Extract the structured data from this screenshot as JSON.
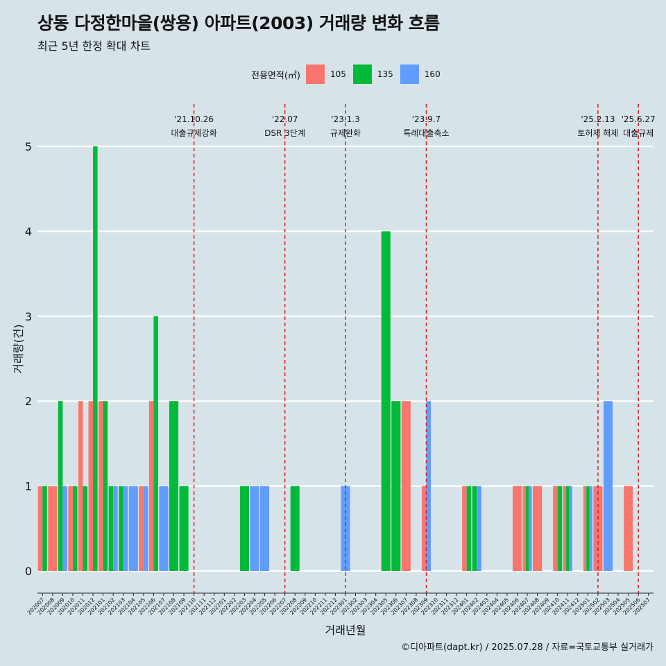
{
  "title": "상동 다정한마을(쌍용) 아파트(2003) 거래량 변화 흐름",
  "subtitle": "최근 5년 한정 확대 차트",
  "caption": "©디아파트(dapt.kr) / 2025.07.28 / 자료=국토교통부 실거래가",
  "legend": {
    "title": "전용면적(㎡)",
    "items": [
      {
        "label": "105",
        "color": "#f8766d"
      },
      {
        "label": "135",
        "color": "#00ba38"
      },
      {
        "label": "160",
        "color": "#619cff"
      }
    ]
  },
  "chart_data": {
    "type": "bar",
    "xlabel": "거래년월",
    "ylabel": "거래량(건)",
    "ylim": [
      0,
      5
    ],
    "yticks": [
      0,
      1,
      2,
      3,
      4,
      5
    ],
    "grid": true,
    "legend_position": "top",
    "categories": [
      "202007",
      "202008",
      "202009",
      "202010",
      "202011",
      "202012",
      "202101",
      "202102",
      "202103",
      "202104",
      "202105",
      "202106",
      "202107",
      "202108",
      "202109",
      "202110",
      "202111",
      "202112",
      "202201",
      "202202",
      "202203",
      "202204",
      "202205",
      "202206",
      "202207",
      "202208",
      "202209",
      "202210",
      "202211",
      "202212",
      "202301",
      "202302",
      "202303",
      "202304",
      "202305",
      "202306",
      "202307",
      "202308",
      "202309",
      "202310",
      "202311",
      "202312",
      "202401",
      "202402",
      "202403",
      "202404",
      "202405",
      "202406",
      "202407",
      "202408",
      "202409",
      "202410",
      "202411",
      "202412",
      "202501",
      "202502",
      "202503",
      "202504",
      "202505",
      "202506",
      "202507"
    ],
    "series": [
      {
        "name": "105",
        "color": "#f8766d",
        "values": [
          1,
          1,
          0,
          1,
          2,
          2,
          2,
          0,
          0,
          0,
          1,
          2,
          0,
          0,
          0,
          0,
          0,
          0,
          0,
          0,
          0,
          0,
          0,
          0,
          0,
          0,
          0,
          0,
          0,
          0,
          0,
          0,
          0,
          0,
          0,
          0,
          2,
          0,
          1,
          0,
          0,
          0,
          1,
          0,
          0,
          0,
          0,
          1,
          1,
          1,
          0,
          1,
          1,
          0,
          1,
          1,
          0,
          0,
          1,
          0,
          0
        ]
      },
      {
        "name": "135",
        "color": "#00ba38",
        "values": [
          1,
          0,
          2,
          1,
          1,
          5,
          2,
          1,
          1,
          0,
          0,
          3,
          0,
          2,
          1,
          0,
          0,
          0,
          0,
          0,
          1,
          0,
          0,
          0,
          0,
          1,
          0,
          0,
          0,
          0,
          0,
          0,
          0,
          0,
          4,
          2,
          0,
          0,
          0,
          0,
          0,
          0,
          1,
          1,
          0,
          0,
          0,
          0,
          1,
          0,
          0,
          1,
          1,
          0,
          1,
          0,
          0,
          0,
          0,
          0,
          0
        ]
      },
      {
        "name": "160",
        "color": "#619cff",
        "values": [
          0,
          0,
          1,
          0,
          0,
          0,
          0,
          1,
          1,
          1,
          1,
          0,
          1,
          0,
          0,
          0,
          0,
          0,
          0,
          0,
          0,
          1,
          1,
          0,
          0,
          0,
          0,
          0,
          0,
          0,
          1,
          0,
          0,
          0,
          0,
          0,
          0,
          0,
          2,
          0,
          0,
          0,
          0,
          1,
          0,
          0,
          0,
          0,
          1,
          0,
          0,
          0,
          1,
          0,
          1,
          0,
          2,
          0,
          0,
          0,
          0
        ]
      }
    ],
    "events": [
      {
        "position": "202110",
        "date": "'21.10.26",
        "label": "대출규제강화"
      },
      {
        "position": "202207",
        "date": "'22.07",
        "label": "DSR 3단계"
      },
      {
        "position": "202301",
        "date": "'23.1.3",
        "label": "규제완화"
      },
      {
        "position": "202309",
        "date": "'23.9.7",
        "label": "특례대출축소"
      },
      {
        "position": "202502",
        "date": "'25.2.13",
        "label": "토허제 해제"
      },
      {
        "position": "202506",
        "date": "'25.6.27",
        "label": "대출규제"
      }
    ]
  }
}
